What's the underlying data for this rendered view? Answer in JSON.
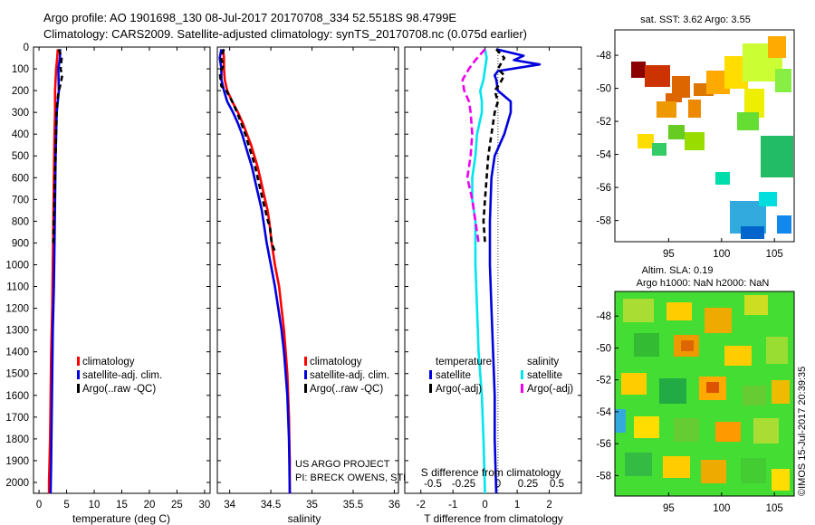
{
  "header": {
    "line1": "Argo profile: AO 1901698_130 08-Jul-2017 20170708_334 52.5518S 98.4799E",
    "line2": "Climatology: CARS2009. Satellite-adjusted climatology: synTS_20170708.nc (0.075d earlier)"
  },
  "colors": {
    "red": "#ff0000",
    "blue": "#0000dd",
    "black": "#000000",
    "cyan": "#00e5ee",
    "magenta": "#ee00ee"
  },
  "chart_data": [
    {
      "type": "line",
      "name": "temperature-panel",
      "xlabel": "temperature (deg C)",
      "ylabel": "",
      "xlim": [
        -1,
        31
      ],
      "ylim": [
        2050,
        0
      ],
      "xticks": [
        "0",
        "5",
        "10",
        "15",
        "20",
        "25",
        "30"
      ],
      "yticks": [
        "0",
        "100",
        "200",
        "300",
        "400",
        "500",
        "600",
        "700",
        "800",
        "900",
        "1000",
        "1100",
        "1200",
        "1300",
        "1400",
        "1500",
        "1600",
        "1700",
        "1800",
        "1900",
        "2000"
      ],
      "legend": [
        "climatology",
        "satellite-adj. clim.",
        "Argo(..raw -QC)"
      ],
      "series": [
        {
          "name": "climatology",
          "color": "#ff0000",
          "points": [
            [
              3.4,
              10
            ],
            [
              3.3,
              50
            ],
            [
              3.1,
              100
            ],
            [
              3.0,
              150
            ],
            [
              2.9,
              200
            ],
            [
              2.9,
              300
            ],
            [
              2.8,
              400
            ],
            [
              2.7,
              600
            ],
            [
              2.6,
              800
            ],
            [
              2.5,
              1000
            ],
            [
              2.4,
              1200
            ],
            [
              2.2,
              1400
            ],
            [
              2.1,
              1600
            ],
            [
              2.0,
              1800
            ],
            [
              1.8,
              2000
            ],
            [
              1.8,
              2050
            ]
          ]
        },
        {
          "name": "satellite-adj. clim.",
          "color": "#0000dd",
          "points": [
            [
              3.8,
              10
            ],
            [
              3.8,
              50
            ],
            [
              3.5,
              100
            ],
            [
              3.6,
              200
            ],
            [
              3.4,
              250
            ],
            [
              3.2,
              300
            ],
            [
              3.1,
              400
            ],
            [
              3.0,
              500
            ],
            [
              2.9,
              700
            ],
            [
              2.8,
              900
            ],
            [
              2.7,
              1100
            ],
            [
              2.5,
              1300
            ],
            [
              2.4,
              1500
            ],
            [
              2.3,
              1700
            ],
            [
              2.2,
              1900
            ],
            [
              2.1,
              2050
            ]
          ]
        },
        {
          "name": "Argo(..raw -QC)",
          "color": "#000000",
          "dash": "6,4",
          "points": [
            [
              3.6,
              10
            ],
            [
              4.1,
              50
            ],
            [
              3.9,
              100
            ],
            [
              4.2,
              130
            ],
            [
              3.9,
              170
            ],
            [
              3.5,
              210
            ],
            [
              3.3,
              260
            ],
            [
              3.2,
              300
            ],
            [
              3.1,
              400
            ],
            [
              3.0,
              500
            ],
            [
              2.9,
              600
            ],
            [
              2.8,
              700
            ],
            [
              2.7,
              800
            ],
            [
              2.6,
              900
            ]
          ]
        }
      ]
    },
    {
      "type": "line",
      "name": "salinity-panel",
      "xlabel": "salinity",
      "xlim": [
        33.85,
        36.05
      ],
      "ylim": [
        2050,
        0
      ],
      "xticks": [
        "34",
        "34.5",
        "35",
        "35.5",
        "36"
      ],
      "legend": [
        "climatology",
        "satellite-adj. clim.",
        "Argo(..raw -QC)"
      ],
      "annotation": [
        "US ARGO PROJECT",
        "PI: BRECK OWENS, STEVE JAYNE, AND P.E. ROBBINS"
      ],
      "series": [
        {
          "name": "climatology",
          "color": "#ff0000",
          "points": [
            [
              33.92,
              10
            ],
            [
              33.93,
              50
            ],
            [
              33.93,
              100
            ],
            [
              33.94,
              150
            ],
            [
              33.97,
              200
            ],
            [
              34.03,
              250
            ],
            [
              34.1,
              300
            ],
            [
              34.16,
              350
            ],
            [
              34.21,
              400
            ],
            [
              34.26,
              450
            ],
            [
              34.3,
              500
            ],
            [
              34.34,
              550
            ],
            [
              34.37,
              600
            ],
            [
              34.4,
              650
            ],
            [
              34.43,
              700
            ],
            [
              34.46,
              750
            ],
            [
              34.48,
              800
            ],
            [
              34.51,
              900
            ],
            [
              34.55,
              1000
            ],
            [
              34.6,
              1100
            ],
            [
              34.63,
              1200
            ],
            [
              34.66,
              1300
            ],
            [
              34.68,
              1400
            ],
            [
              34.7,
              1500
            ],
            [
              34.71,
              1600
            ],
            [
              34.72,
              1700
            ],
            [
              34.725,
              1800
            ],
            [
              34.73,
              1900
            ],
            [
              34.73,
              2050
            ]
          ]
        },
        {
          "name": "satellite-adj. clim.",
          "color": "#0000dd",
          "points": [
            [
              33.9,
              10
            ],
            [
              33.88,
              50
            ],
            [
              33.9,
              100
            ],
            [
              33.9,
              150
            ],
            [
              33.93,
              200
            ],
            [
              33.97,
              250
            ],
            [
              34.04,
              300
            ],
            [
              34.1,
              350
            ],
            [
              34.15,
              400
            ],
            [
              34.19,
              450
            ],
            [
              34.23,
              500
            ],
            [
              34.27,
              550
            ],
            [
              34.3,
              600
            ],
            [
              34.33,
              650
            ],
            [
              34.36,
              700
            ],
            [
              34.39,
              750
            ],
            [
              34.41,
              800
            ],
            [
              34.45,
              900
            ],
            [
              34.5,
              1000
            ],
            [
              34.55,
              1100
            ],
            [
              34.59,
              1200
            ],
            [
              34.63,
              1300
            ],
            [
              34.66,
              1400
            ],
            [
              34.68,
              1500
            ],
            [
              34.7,
              1600
            ],
            [
              34.71,
              1700
            ],
            [
              34.72,
              1800
            ],
            [
              34.725,
              1900
            ],
            [
              34.73,
              2050
            ]
          ]
        },
        {
          "name": "Argo(..raw -QC)",
          "color": "#000000",
          "dash": "6,4",
          "points": [
            [
              33.93,
              10
            ],
            [
              33.9,
              40
            ],
            [
              33.9,
              60
            ],
            [
              33.93,
              80
            ],
            [
              33.88,
              120
            ],
            [
              33.89,
              150
            ],
            [
              33.9,
              180
            ],
            [
              33.96,
              200
            ],
            [
              34.03,
              250
            ],
            [
              34.09,
              300
            ],
            [
              34.14,
              350
            ],
            [
              34.19,
              400
            ],
            [
              34.23,
              450
            ],
            [
              34.27,
              500
            ],
            [
              34.31,
              550
            ],
            [
              34.34,
              600
            ],
            [
              34.37,
              650
            ],
            [
              34.4,
              700
            ],
            [
              34.44,
              760
            ],
            [
              34.45,
              780
            ],
            [
              34.49,
              830
            ],
            [
              34.51,
              900
            ],
            [
              34.55,
              940
            ]
          ]
        }
      ]
    },
    {
      "type": "line",
      "name": "difference-panel",
      "xlabel": "T difference from climatology",
      "xlabel_top": "S difference from climatology",
      "xlim": [
        -2.5,
        3.0
      ],
      "ylim": [
        2050,
        0
      ],
      "xticks": [
        "-2",
        "-1",
        "0",
        "1",
        "2"
      ],
      "xticks_top": [
        "-0.5",
        "-0.25",
        "0",
        "0.25",
        "0.5"
      ],
      "legend_headers": [
        "temperature",
        "salinity"
      ],
      "legend": [
        "satellite",
        "Argo(-adj)",
        "satellite",
        "Argo(-adj)"
      ],
      "series": [
        {
          "name": "temperature satellite",
          "color": "#0000dd",
          "points": [
            [
              0.35,
              10
            ],
            [
              1.2,
              40
            ],
            [
              0.9,
              60
            ],
            [
              1.7,
              80
            ],
            [
              0.4,
              110
            ],
            [
              0.3,
              130
            ],
            [
              0.35,
              150
            ],
            [
              0.4,
              200
            ],
            [
              0.8,
              250
            ],
            [
              0.8,
              300
            ],
            [
              0.6,
              400
            ],
            [
              0.3,
              500
            ],
            [
              0.2,
              600
            ],
            [
              0.15,
              800
            ],
            [
              0.15,
              1000
            ],
            [
              0.2,
              1200
            ],
            [
              0.25,
              1400
            ],
            [
              0.3,
              1600
            ],
            [
              0.3,
              1800
            ],
            [
              0.35,
              2050
            ]
          ]
        },
        {
          "name": "temperature Argo(-adj)",
          "color": "#000000",
          "dash": "6,4",
          "points": [
            [
              0.35,
              10
            ],
            [
              0.6,
              50
            ],
            [
              0.4,
              100
            ],
            [
              0.6,
              130
            ],
            [
              0.45,
              170
            ],
            [
              0.3,
              200
            ],
            [
              0.4,
              250
            ],
            [
              0.3,
              300
            ],
            [
              0.2,
              400
            ],
            [
              0.1,
              500
            ],
            [
              0.05,
              600
            ],
            [
              0.0,
              700
            ],
            [
              -0.05,
              800
            ],
            [
              0.0,
              900
            ]
          ]
        },
        {
          "name": "salinity satellite",
          "color": "#00e5ee",
          "points": [
            [
              0.0,
              10
            ],
            [
              0.05,
              50
            ],
            [
              0.0,
              100
            ],
            [
              -0.05,
              150
            ],
            [
              -0.15,
              200
            ],
            [
              -0.1,
              250
            ],
            [
              -0.1,
              300
            ],
            [
              -0.25,
              400
            ],
            [
              -0.3,
              500
            ],
            [
              -0.4,
              600
            ],
            [
              -0.4,
              700
            ],
            [
              -0.3,
              800
            ],
            [
              -0.3,
              1000
            ],
            [
              -0.25,
              1200
            ],
            [
              -0.2,
              1400
            ],
            [
              -0.1,
              1600
            ],
            [
              -0.05,
              1800
            ],
            [
              0.0,
              2050
            ]
          ]
        },
        {
          "name": "salinity Argo(-adj)",
          "color": "#ee00ee",
          "dash": "8,4",
          "points": [
            [
              0.0,
              10
            ],
            [
              -0.3,
              60
            ],
            [
              -0.5,
              100
            ],
            [
              -0.7,
              150
            ],
            [
              -0.65,
              200
            ],
            [
              -0.5,
              250
            ],
            [
              -0.45,
              300
            ],
            [
              -0.4,
              400
            ],
            [
              -0.45,
              500
            ],
            [
              -0.55,
              600
            ],
            [
              -0.4,
              700
            ],
            [
              -0.3,
              800
            ],
            [
              -0.2,
              900
            ]
          ]
        }
      ]
    }
  ],
  "maps": {
    "sst": {
      "title": "sat. SST: 3.62 Argo: 3.55",
      "xticks": [
        "95",
        "100",
        "105"
      ],
      "yticks": [
        "-48",
        "-50",
        "-52",
        "-54",
        "-56",
        "-58"
      ]
    },
    "sla": {
      "title_line1": "Altim. SLA: 0.19",
      "title_line2": "Argo h1000: NaN h2000: NaN",
      "xticks": [
        "95",
        "100",
        "105"
      ],
      "yticks": [
        "-48",
        "-50",
        "-52",
        "-54",
        "-56",
        "-58"
      ]
    },
    "watermark": "©IMOS 15-Jul-2017 20:39:35"
  }
}
